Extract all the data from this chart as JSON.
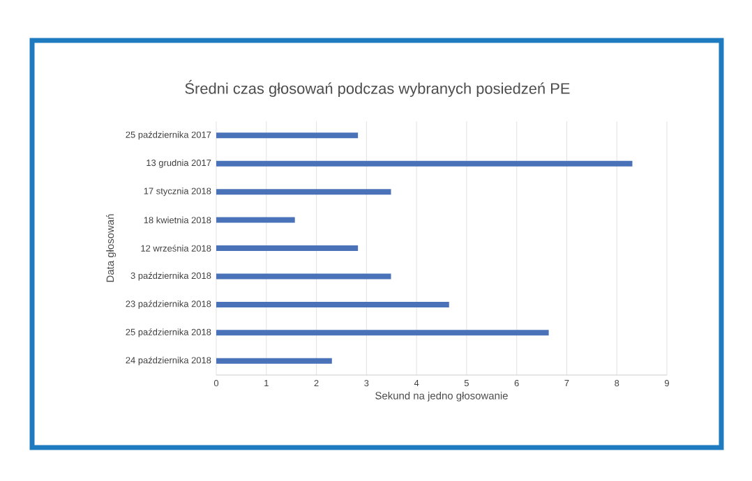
{
  "chart_data": {
    "type": "bar",
    "orientation": "horizontal",
    "title": "Średni czas głosowań podczas wybranych posiedzeń PE",
    "xlabel": "Sekund na jedno głosowanie",
    "ylabel": "Data głosowań",
    "categories": [
      "25 października 2017",
      "13 grudnia 2017",
      "17 stycznia 2018",
      "18 kwietnia 2018",
      "12 września 2018",
      "3 października 2018",
      "23 października 2018",
      "25 października 2018",
      "24 października 2018"
    ],
    "values": [
      2.83,
      8.31,
      3.49,
      1.57,
      2.83,
      3.49,
      4.65,
      6.64,
      2.31
    ],
    "color": "#4a72b8",
    "xlim": [
      0,
      9
    ],
    "xticks": [
      0,
      1,
      2,
      3,
      4,
      5,
      6,
      7,
      8,
      9
    ],
    "grid": "x"
  }
}
